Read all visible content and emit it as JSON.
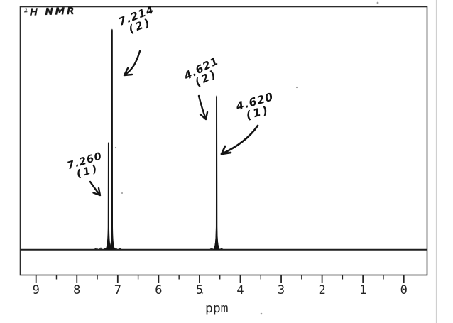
{
  "title": "¹H NMR",
  "axis": {
    "tick_labels": [
      "9",
      "8",
      "7",
      "6",
      "5",
      "4",
      "3",
      "2",
      "1",
      "0"
    ],
    "label": "ppm"
  },
  "annotations": [
    {
      "shift": "7.214",
      "integration": "(2)"
    },
    {
      "shift": "7.260",
      "integration": "(1)"
    },
    {
      "shift": "4.621",
      "integration": "(2)"
    },
    {
      "shift": "4.620",
      "integration": "(1)"
    }
  ],
  "chart_data": {
    "type": "line",
    "title": "¹H NMR",
    "xlabel": "ppm",
    "x_axis": {
      "min": -0.6,
      "max": 9.4,
      "reversed": true,
      "major_tick_interval": 1,
      "minor_tick_interval": 0.5
    },
    "grid": false,
    "legend": false,
    "baseline_intensity": 0,
    "peaks": [
      {
        "ppm": 7.26,
        "label": "7.260",
        "integration": 1,
        "relative_height": 0.49
      },
      {
        "ppm": 7.214,
        "label": "7.214",
        "integration": 2,
        "relative_height": 1.0
      },
      {
        "ppm": 4.621,
        "label": "4.621",
        "integration": 2,
        "relative_height": 0.7
      },
      {
        "ppm": 4.62,
        "label": "4.620",
        "integration": 1,
        "relative_height": 0.7
      }
    ]
  },
  "colors": {
    "ink": "#141414",
    "frame": "#2c2c2c",
    "scan_edge": "#cfcfcf"
  }
}
